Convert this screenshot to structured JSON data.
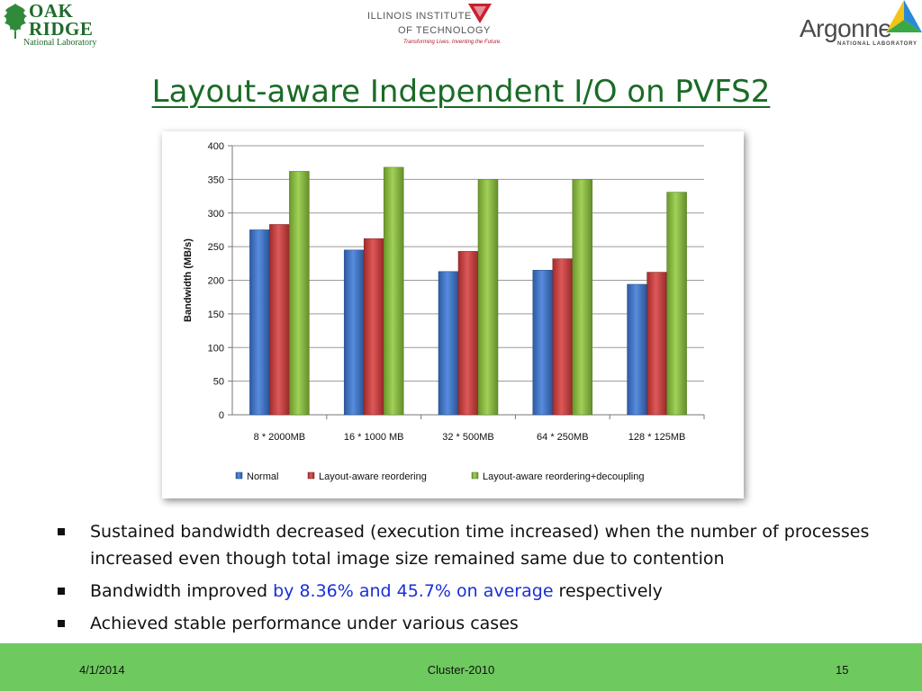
{
  "logos": {
    "ornl": {
      "line1": "OAK",
      "line2": "RIDGE",
      "line3": "National Laboratory"
    },
    "iit": {
      "line1": "ILLINOIS INSTITUTE",
      "line2": "OF TECHNOLOGY",
      "tagline": "Transforming Lives. Inventing the Future."
    },
    "anl": {
      "name": "Argonne",
      "sub": "NATIONAL LABORATORY"
    }
  },
  "slide": {
    "title": "Layout-aware Independent I/O on PVFS2"
  },
  "chart_data": {
    "type": "bar",
    "categories": [
      "8 * 2000MB",
      "16 * 1000 MB",
      "32 * 500MB",
      "64 * 250MB",
      "128 * 125MB"
    ],
    "series": [
      {
        "name": "Normal",
        "values": [
          275,
          245,
          213,
          215,
          194
        ],
        "color": "#3a78d8"
      },
      {
        "name": "Layout-aware reordering",
        "values": [
          283,
          262,
          243,
          232,
          212
        ],
        "color": "#d83a3a"
      },
      {
        "name": "Layout-aware reordering+decoupling",
        "values": [
          362,
          368,
          350,
          350,
          331
        ],
        "color": "#8fc93a"
      }
    ],
    "xlabel": "",
    "ylabel": "Bandwidth (MB/s)",
    "ylim": [
      0,
      400
    ],
    "yticks": [
      0,
      50,
      100,
      150,
      200,
      250,
      300,
      350,
      400
    ],
    "grid": true,
    "legend": "bottom"
  },
  "bullets": {
    "b1": "Sustained bandwidth decreased (execution time increased) when the number of processes increased even though total image size remained same due to contention",
    "b2_pre": "Bandwidth improved ",
    "b2_hl": "by 8.36% and 45.7% on average",
    "b2_post": " respectively",
    "b3": "Achieved stable performance under various cases"
  },
  "footer": {
    "date": "4/1/2014",
    "conference": "Cluster-2010",
    "page": "15"
  }
}
